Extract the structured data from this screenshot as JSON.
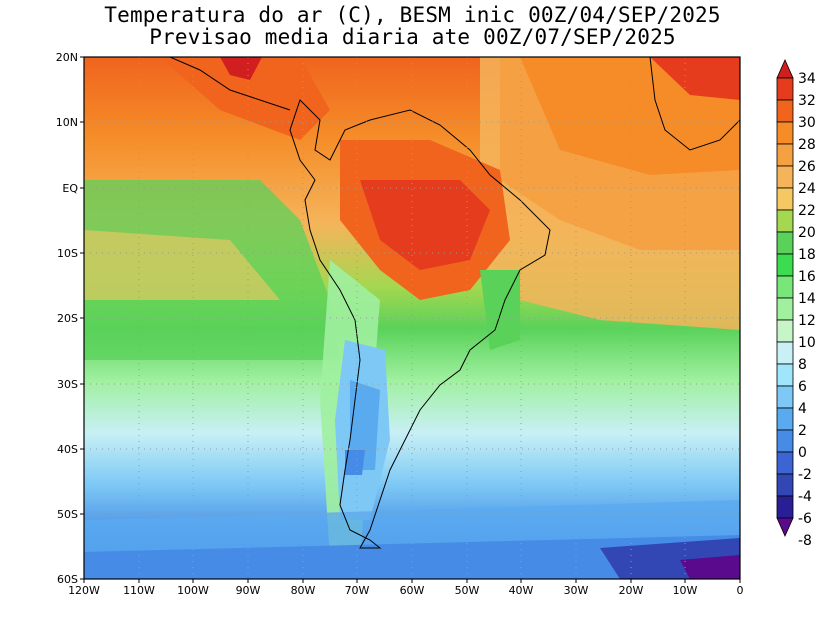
{
  "title": {
    "line1": "Temperatura do ar (C), BESM inic 00Z/04/SEP/2025",
    "line2": "Previsao media diaria ate 00Z/07/SEP/2025"
  },
  "map": {
    "lon_range": [
      -120,
      0
    ],
    "lat_range": [
      -60,
      20
    ],
    "lat_ticks": [
      "20N",
      "10N",
      "EQ",
      "10S",
      "20S",
      "30S",
      "40S",
      "50S",
      "60S"
    ],
    "lon_ticks": [
      "120W",
      "110W",
      "100W",
      "90W",
      "80W",
      "70W",
      "60W",
      "50W",
      "40W",
      "30W",
      "20W",
      "10W",
      "0"
    ],
    "grid": "dotted"
  },
  "colorbar": {
    "labels": [
      "34",
      "32",
      "30",
      "28",
      "26",
      "24",
      "22",
      "20",
      "18",
      "16",
      "14",
      "12",
      "10",
      "8",
      "6",
      "4",
      "2",
      "0",
      "-2",
      "-4",
      "-6",
      "-8"
    ],
    "colors": [
      "#d11e1e",
      "#e63c1e",
      "#f0641e",
      "#f58c28",
      "#f5a041",
      "#f5b45a",
      "#f5c864",
      "#a5d750",
      "#5ad25a",
      "#3cdc50",
      "#78e678",
      "#a0f0a0",
      "#c8f5c8",
      "#c8f0f5",
      "#a0e6fa",
      "#7dc8f5",
      "#5aaaf0",
      "#468ce6",
      "#3c64d2",
      "#3246b4",
      "#281e96",
      "#5a0a8c"
    ]
  }
}
